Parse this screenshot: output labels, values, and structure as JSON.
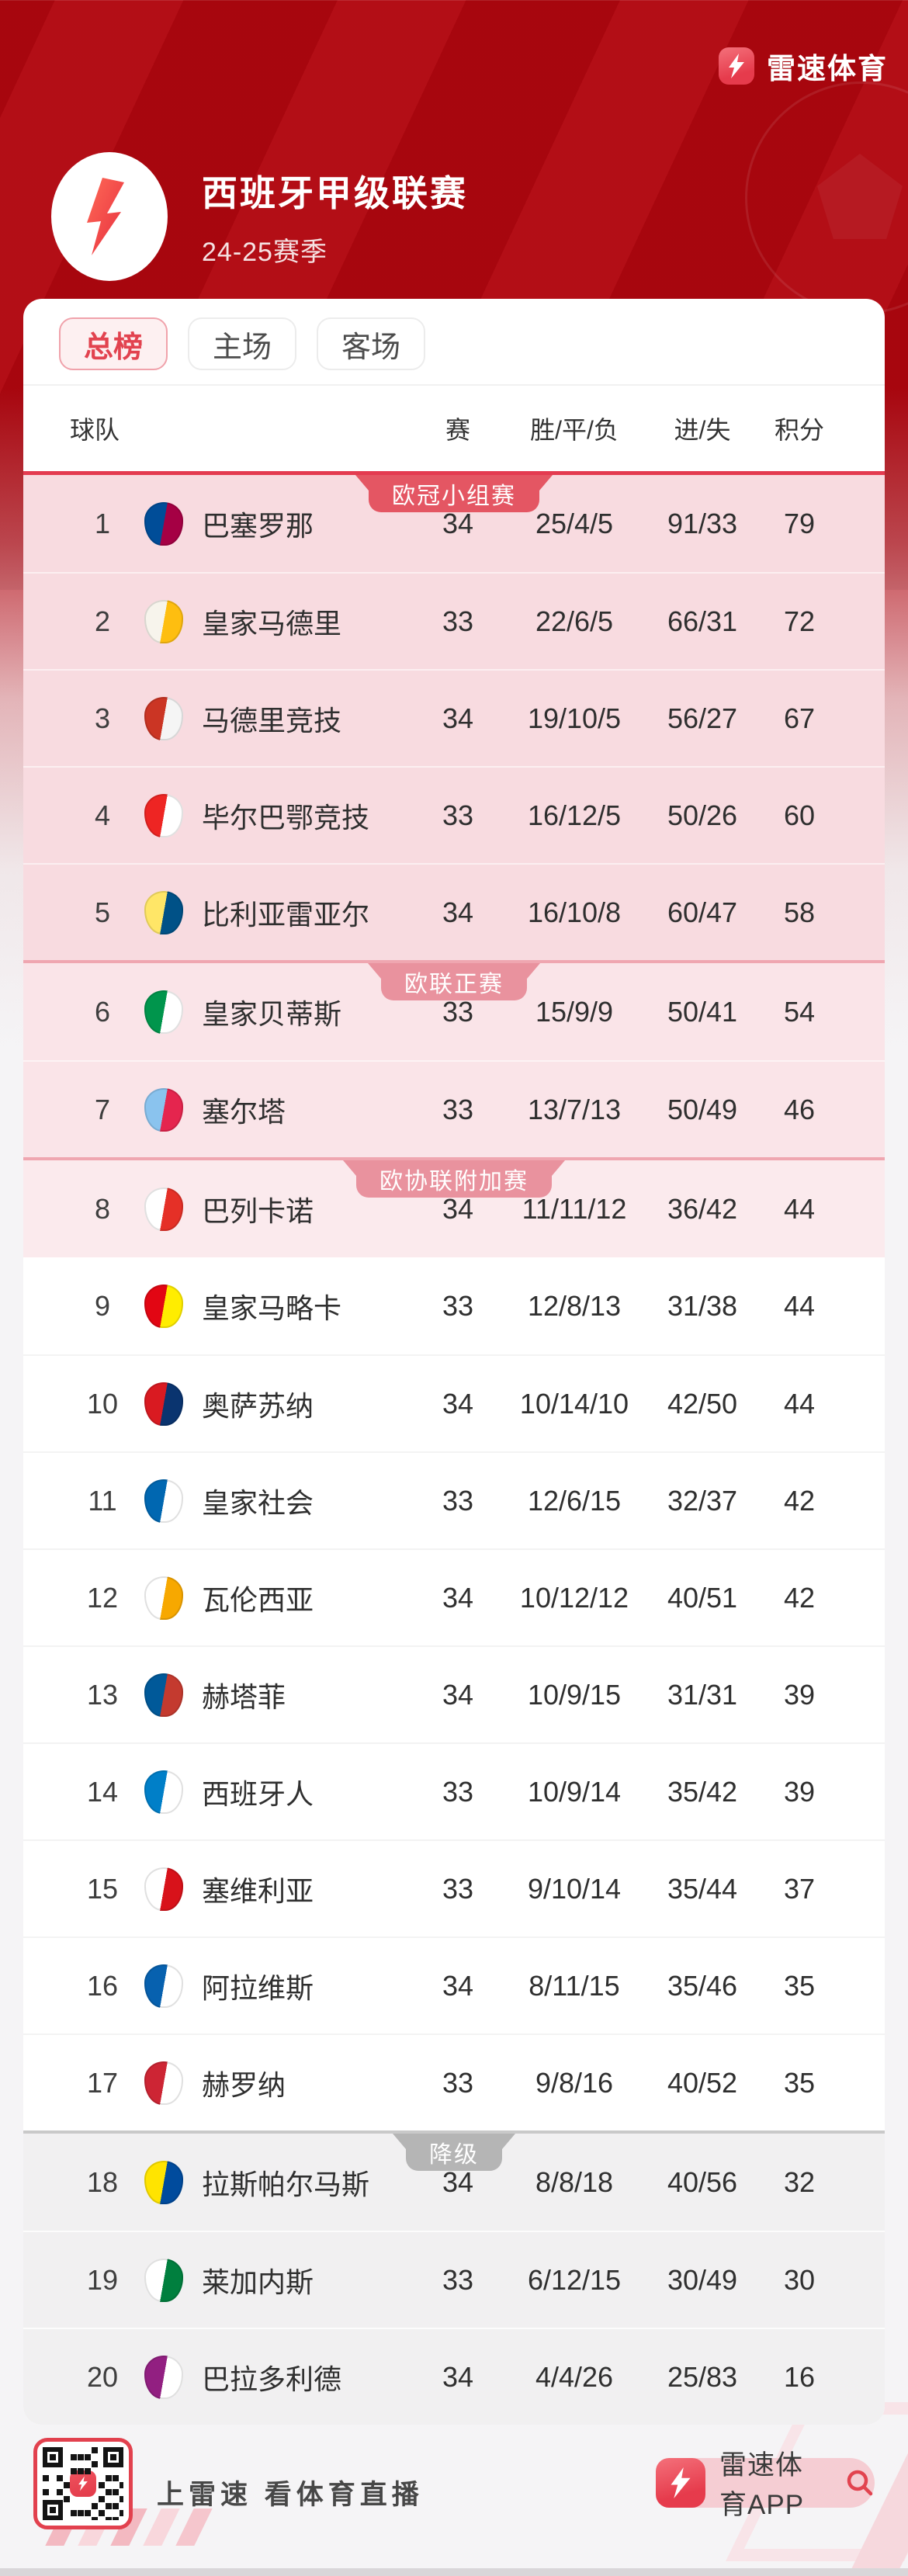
{
  "app": {
    "brand": "雷速体育"
  },
  "header": {
    "league": "西班牙甲级联赛",
    "season": "24-25赛季"
  },
  "tabs": [
    {
      "label": "总榜",
      "active": true
    },
    {
      "label": "主场",
      "active": false
    },
    {
      "label": "客场",
      "active": false
    }
  ],
  "table": {
    "columns": {
      "team": "球队",
      "played": "赛",
      "wdl": "胜/平/负",
      "goals": "进/失",
      "points": "积分"
    },
    "sections": [
      {
        "badge": "欧冠小组赛",
        "theme": "ucl",
        "rows": [
          {
            "rank": "1",
            "team": "巴塞罗那",
            "played": "34",
            "wdl": "25/4/5",
            "goals": "91/33",
            "points": "79",
            "crest": {
              "name": "barcelona-crest",
              "colors": [
                "#004D98",
                "#A50044"
              ]
            }
          },
          {
            "rank": "2",
            "team": "皇家马德里",
            "played": "33",
            "wdl": "22/6/5",
            "goals": "66/31",
            "points": "72",
            "crest": {
              "name": "real-madrid-crest",
              "colors": [
                "#F7F4EC",
                "#FEBE10"
              ]
            }
          },
          {
            "rank": "3",
            "team": "马德里竞技",
            "played": "34",
            "wdl": "19/10/5",
            "goals": "56/27",
            "points": "67",
            "crest": {
              "name": "atletico-madrid-crest",
              "colors": [
                "#CB3524",
                "#F5F5F5"
              ]
            }
          },
          {
            "rank": "4",
            "team": "毕尔巴鄂竞技",
            "played": "33",
            "wdl": "16/12/5",
            "goals": "50/26",
            "points": "60",
            "crest": {
              "name": "athletic-bilbao-crest",
              "colors": [
                "#EE2523",
                "#FFFFFF"
              ]
            }
          },
          {
            "rank": "5",
            "team": "比利亚雷亚尔",
            "played": "34",
            "wdl": "16/10/8",
            "goals": "60/47",
            "points": "58",
            "crest": {
              "name": "villarreal-crest",
              "colors": [
                "#FFE667",
                "#005187"
              ]
            }
          }
        ]
      },
      {
        "badge": "欧联正赛",
        "theme": "uel",
        "rows": [
          {
            "rank": "6",
            "team": "皇家贝蒂斯",
            "played": "33",
            "wdl": "15/9/9",
            "goals": "50/41",
            "points": "54",
            "crest": {
              "name": "real-betis-crest",
              "colors": [
                "#00954C",
                "#FFFFFF"
              ]
            }
          },
          {
            "rank": "7",
            "team": "塞尔塔",
            "played": "33",
            "wdl": "13/7/13",
            "goals": "50/49",
            "points": "46",
            "crest": {
              "name": "celta-vigo-crest",
              "colors": [
                "#8AC3EE",
                "#E5254E"
              ]
            }
          }
        ]
      },
      {
        "badge": "欧协联附加赛",
        "theme": "uecl",
        "rows": [
          {
            "rank": "8",
            "team": "巴列卡诺",
            "played": "34",
            "wdl": "11/11/12",
            "goals": "36/42",
            "points": "44",
            "crest": {
              "name": "rayo-vallecano-crest",
              "colors": [
                "#FFFFFF",
                "#E53027"
              ]
            }
          }
        ]
      },
      {
        "badge": "",
        "theme": "plain",
        "rows": [
          {
            "rank": "9",
            "team": "皇家马略卡",
            "played": "33",
            "wdl": "12/8/13",
            "goals": "31/38",
            "points": "44",
            "crest": {
              "name": "mallorca-crest",
              "colors": [
                "#E20613",
                "#FFED00"
              ]
            }
          },
          {
            "rank": "10",
            "team": "奥萨苏纳",
            "played": "34",
            "wdl": "10/14/10",
            "goals": "42/50",
            "points": "44",
            "crest": {
              "name": "osasuna-crest",
              "colors": [
                "#D91A21",
                "#0A346F"
              ]
            }
          },
          {
            "rank": "11",
            "team": "皇家社会",
            "played": "33",
            "wdl": "12/6/15",
            "goals": "32/37",
            "points": "42",
            "crest": {
              "name": "real-sociedad-crest",
              "colors": [
                "#0067B1",
                "#FFFFFF"
              ]
            }
          },
          {
            "rank": "12",
            "team": "瓦伦西亚",
            "played": "34",
            "wdl": "10/12/12",
            "goals": "40/51",
            "points": "42",
            "crest": {
              "name": "valencia-crest",
              "colors": [
                "#FFFFFF",
                "#F7A800"
              ]
            }
          },
          {
            "rank": "13",
            "team": "赫塔菲",
            "played": "34",
            "wdl": "10/9/15",
            "goals": "31/31",
            "points": "39",
            "crest": {
              "name": "getafe-crest",
              "colors": [
                "#005999",
                "#C43A2F"
              ]
            }
          },
          {
            "rank": "14",
            "team": "西班牙人",
            "played": "33",
            "wdl": "10/9/14",
            "goals": "35/42",
            "points": "39",
            "crest": {
              "name": "espanyol-crest",
              "colors": [
                "#007FC8",
                "#FFFFFF"
              ]
            }
          },
          {
            "rank": "15",
            "team": "塞维利亚",
            "played": "33",
            "wdl": "9/10/14",
            "goals": "35/44",
            "points": "37",
            "crest": {
              "name": "sevilla-crest",
              "colors": [
                "#FFFFFF",
                "#D8121A"
              ]
            }
          },
          {
            "rank": "16",
            "team": "阿拉维斯",
            "played": "34",
            "wdl": "8/11/15",
            "goals": "35/46",
            "points": "35",
            "crest": {
              "name": "alaves-crest",
              "colors": [
                "#0761AF",
                "#FFFFFF"
              ]
            }
          },
          {
            "rank": "17",
            "team": "赫罗纳",
            "played": "33",
            "wdl": "9/8/16",
            "goals": "40/52",
            "points": "35",
            "crest": {
              "name": "girona-crest",
              "colors": [
                "#CD2534",
                "#FFFFFF"
              ]
            }
          }
        ]
      },
      {
        "badge": "降级",
        "theme": "releg",
        "rows": [
          {
            "rank": "18",
            "team": "拉斯帕尔马斯",
            "played": "34",
            "wdl": "8/8/18",
            "goals": "40/56",
            "points": "32",
            "crest": {
              "name": "las-palmas-crest",
              "colors": [
                "#FFE400",
                "#004B9D"
              ]
            }
          },
          {
            "rank": "19",
            "team": "莱加内斯",
            "played": "33",
            "wdl": "6/12/15",
            "goals": "30/49",
            "points": "30",
            "crest": {
              "name": "leganes-crest",
              "colors": [
                "#FFFFFF",
                "#007F3E"
              ]
            }
          },
          {
            "rank": "20",
            "team": "巴拉多利德",
            "played": "34",
            "wdl": "4/4/26",
            "goals": "25/83",
            "points": "16",
            "crest": {
              "name": "valladolid-crest",
              "colors": [
                "#921F81",
                "#FFFFFF"
              ]
            }
          }
        ]
      }
    ]
  },
  "footer": {
    "slogan": "上雷速 看体育直播",
    "app_button": "雷速体育APP"
  },
  "colors": {
    "header_red": "#B1060F",
    "accent": "#E2434F",
    "line_strong": "#E43B50",
    "badge_strong": "#E45663",
    "line_soft": "#EFA6B0",
    "badge_soft": "#E9929E",
    "pink_a": "#F8DBE0",
    "pink_b": "#FAE4E8",
    "pink_c": "#FBEAED",
    "releg_bg": "#F1F0F1",
    "releg_line": "#C9C9C9",
    "releg_badge": "#B5B5B5",
    "footer_pill": "#F5CDD3",
    "page_light": "#F5F4F6"
  }
}
